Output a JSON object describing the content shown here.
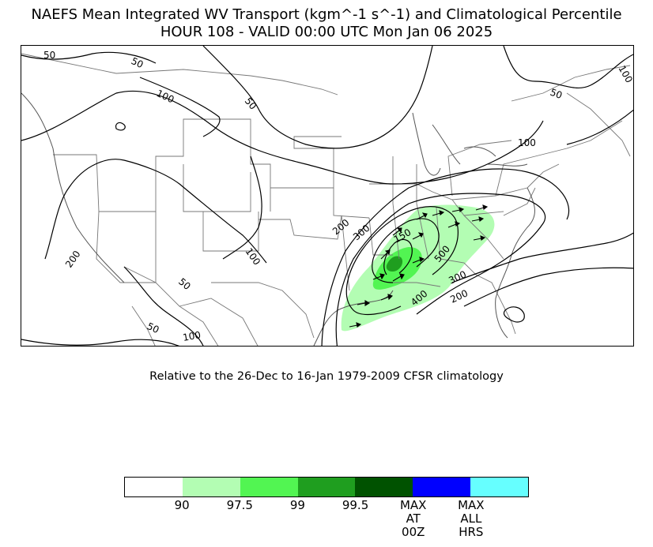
{
  "title_line1": "NAEFS Mean Integrated WV Transport (kgm^-1 s^-1) and Climatological Percentile",
  "title_line2": "HOUR 108 - VALID 00:00 UTC Mon Jan 06 2025",
  "subtitle": "Relative to the 26-Dec to 16-Jan 1979-2009 CFSR climatology",
  "map": {
    "contour_labels": [
      "50",
      "50",
      "100",
      "50",
      "100",
      "50",
      "100",
      "200",
      "100",
      "50",
      "50",
      "100",
      "200",
      "300",
      "150",
      "500",
      "300",
      "200",
      "400"
    ],
    "colors": {
      "border": "#000000",
      "state_lines": "#777777",
      "contour": "#000000"
    }
  },
  "colorbar": {
    "colors": [
      "#ffffff",
      "#b3fdb3",
      "#52f552",
      "#1f9e1f",
      "#005200",
      "#0000ff",
      "#66ffff"
    ],
    "ticks": [
      {
        "label": "90",
        "fraction": 0.1429
      },
      {
        "label": "97.5",
        "fraction": 0.2857
      },
      {
        "label": "99",
        "fraction": 0.4286
      },
      {
        "label": "99.5",
        "fraction": 0.5714
      },
      {
        "label": "MAX\nAT\n00Z",
        "fraction": 0.7143
      },
      {
        "label": "MAX\nALL\nHRS",
        "fraction": 0.8571
      }
    ]
  }
}
